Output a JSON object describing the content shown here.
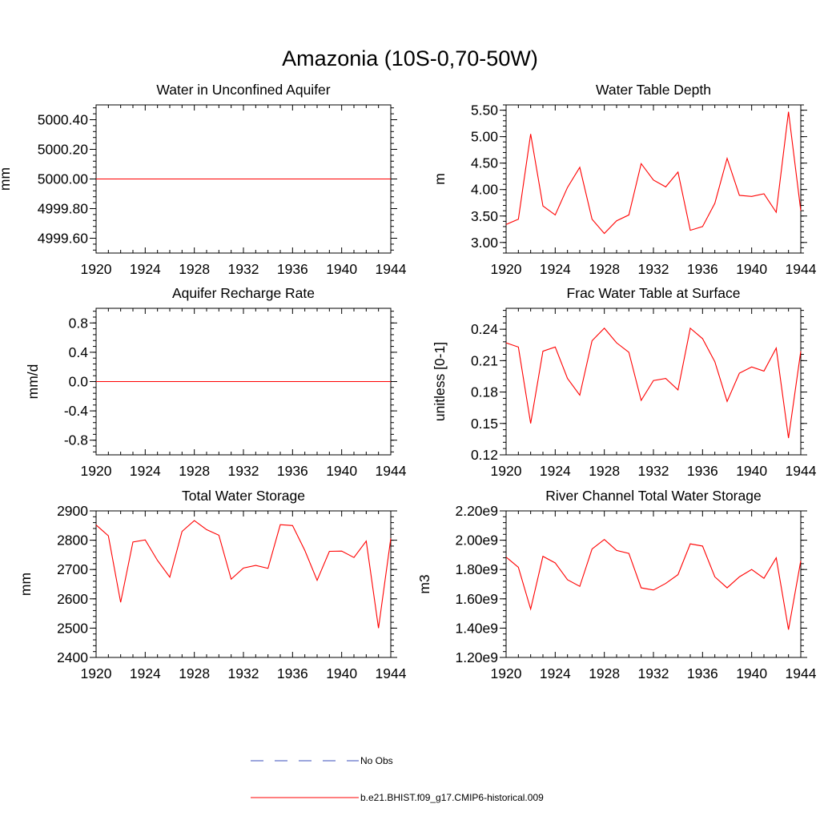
{
  "figure": {
    "title": "Amazonia (10S-0,70-50W)"
  },
  "colors": {
    "model_line": "#ff0000",
    "obs_line": "#3a4dbb",
    "axis": "#000000",
    "background": "#ffffff"
  },
  "legend": {
    "entries": [
      {
        "label": "No Obs",
        "style": "dashed",
        "color": "#3a4dbb"
      },
      {
        "label": "b.e21.BHIST.f09_g17.CMIP6-historical.009",
        "style": "solid",
        "color": "#ff0000"
      }
    ]
  },
  "chart_data": [
    {
      "type": "line",
      "title": "Water in Unconfined Aquifer",
      "ylabel": "mm",
      "xlabel": "",
      "xlim": [
        1920,
        1944
      ],
      "ylim": [
        4999.5,
        5000.5
      ],
      "xticks": [
        1920,
        1924,
        1928,
        1932,
        1936,
        1940,
        1944
      ],
      "xtick_labels": [
        "1920",
        "1924",
        "1928",
        "1932",
        "1936",
        "1940",
        "1944"
      ],
      "yticks": [
        4999.6,
        4999.8,
        5000.0,
        5000.2,
        5000.4
      ],
      "ytick_labels": [
        "4999.60",
        "4999.80",
        "5000.00",
        "5000.20",
        "5000.40"
      ],
      "x": [
        1920,
        1921,
        1922,
        1923,
        1924,
        1925,
        1926,
        1927,
        1928,
        1929,
        1930,
        1931,
        1932,
        1933,
        1934,
        1935,
        1936,
        1937,
        1938,
        1939,
        1940,
        1941,
        1942,
        1943,
        1944
      ],
      "series": [
        {
          "name": "b.e21.BHIST.f09_g17.CMIP6-historical.009",
          "values": [
            5000,
            5000,
            5000,
            5000,
            5000,
            5000,
            5000,
            5000,
            5000,
            5000,
            5000,
            5000,
            5000,
            5000,
            5000,
            5000,
            5000,
            5000,
            5000,
            5000,
            5000,
            5000,
            5000,
            5000,
            5000
          ]
        }
      ]
    },
    {
      "type": "line",
      "title": "Water Table Depth",
      "ylabel": "m",
      "xlabel": "",
      "xlim": [
        1920,
        1944
      ],
      "ylim": [
        2.8,
        5.6
      ],
      "xticks": [
        1920,
        1924,
        1928,
        1932,
        1936,
        1940,
        1944
      ],
      "xtick_labels": [
        "1920",
        "1924",
        "1928",
        "1932",
        "1936",
        "1940",
        "1944"
      ],
      "yticks": [
        3.0,
        3.5,
        4.0,
        4.5,
        5.0,
        5.5
      ],
      "ytick_labels": [
        "3.00",
        "3.50",
        "4.00",
        "4.50",
        "5.00",
        "5.50"
      ],
      "x": [
        1920,
        1921,
        1922,
        1923,
        1924,
        1925,
        1926,
        1927,
        1928,
        1929,
        1930,
        1931,
        1932,
        1933,
        1934,
        1935,
        1936,
        1937,
        1938,
        1939,
        1940,
        1941,
        1942,
        1943,
        1944
      ],
      "series": [
        {
          "name": "b.e21.BHIST.f09_g17.CMIP6-historical.009",
          "values": [
            3.34,
            3.44,
            5.05,
            3.69,
            3.52,
            4.04,
            4.42,
            3.44,
            3.17,
            3.41,
            3.52,
            4.49,
            4.18,
            4.05,
            4.33,
            3.23,
            3.3,
            3.74,
            4.59,
            3.89,
            3.87,
            3.92,
            3.57,
            5.47,
            3.6
          ]
        }
      ]
    },
    {
      "type": "line",
      "title": "Aquifer Recharge Rate",
      "ylabel": "mm/d",
      "xlabel": "",
      "xlim": [
        1920,
        1944
      ],
      "ylim": [
        -1.0,
        1.0
      ],
      "xticks": [
        1920,
        1924,
        1928,
        1932,
        1936,
        1940,
        1944
      ],
      "xtick_labels": [
        "1920",
        "1924",
        "1928",
        "1932",
        "1936",
        "1940",
        "1944"
      ],
      "yticks": [
        -0.8,
        -0.4,
        0.0,
        0.4,
        0.8
      ],
      "ytick_labels": [
        "-0.8",
        "-0.4",
        "0.0",
        "0.4",
        "0.8"
      ],
      "x": [
        1920,
        1921,
        1922,
        1923,
        1924,
        1925,
        1926,
        1927,
        1928,
        1929,
        1930,
        1931,
        1932,
        1933,
        1934,
        1935,
        1936,
        1937,
        1938,
        1939,
        1940,
        1941,
        1942,
        1943,
        1944
      ],
      "series": [
        {
          "name": "b.e21.BHIST.f09_g17.CMIP6-historical.009",
          "values": [
            0,
            0,
            0,
            0,
            0,
            0,
            0,
            0,
            0,
            0,
            0,
            0,
            0,
            0,
            0,
            0,
            0,
            0,
            0,
            0,
            0,
            0,
            0,
            0,
            0
          ]
        }
      ]
    },
    {
      "type": "line",
      "title": "Frac Water Table at Surface",
      "ylabel": "unitless [0-1]",
      "xlabel": "",
      "xlim": [
        1920,
        1944
      ],
      "ylim": [
        0.12,
        0.26
      ],
      "xticks": [
        1920,
        1924,
        1928,
        1932,
        1936,
        1940,
        1944
      ],
      "xtick_labels": [
        "1920",
        "1924",
        "1928",
        "1932",
        "1936",
        "1940",
        "1944"
      ],
      "yticks": [
        0.12,
        0.15,
        0.18,
        0.21,
        0.24
      ],
      "ytick_labels": [
        "0.12",
        "0.15",
        "0.18",
        "0.21",
        "0.24"
      ],
      "x": [
        1920,
        1921,
        1922,
        1923,
        1924,
        1925,
        1926,
        1927,
        1928,
        1929,
        1930,
        1931,
        1932,
        1933,
        1934,
        1935,
        1936,
        1937,
        1938,
        1939,
        1940,
        1941,
        1942,
        1943,
        1944
      ],
      "series": [
        {
          "name": "b.e21.BHIST.f09_g17.CMIP6-historical.009",
          "values": [
            0.227,
            0.223,
            0.15,
            0.219,
            0.223,
            0.193,
            0.177,
            0.229,
            0.241,
            0.227,
            0.218,
            0.172,
            0.191,
            0.193,
            0.182,
            0.241,
            0.231,
            0.209,
            0.171,
            0.198,
            0.204,
            0.2,
            0.222,
            0.136,
            0.219
          ]
        }
      ]
    },
    {
      "type": "line",
      "title": "Total Water Storage",
      "ylabel": "mm",
      "xlabel": "",
      "xlim": [
        1920,
        1944
      ],
      "ylim": [
        2400,
        2900
      ],
      "xticks": [
        1920,
        1924,
        1928,
        1932,
        1936,
        1940,
        1944
      ],
      "xtick_labels": [
        "1920",
        "1924",
        "1928",
        "1932",
        "1936",
        "1940",
        "1944"
      ],
      "yticks": [
        2400,
        2500,
        2600,
        2700,
        2800,
        2900
      ],
      "ytick_labels": [
        "2400",
        "2500",
        "2600",
        "2700",
        "2800",
        "2900"
      ],
      "x": [
        1920,
        1921,
        1922,
        1923,
        1924,
        1925,
        1926,
        1927,
        1928,
        1929,
        1930,
        1931,
        1932,
        1933,
        1934,
        1935,
        1936,
        1937,
        1938,
        1939,
        1940,
        1941,
        1942,
        1943,
        1944
      ],
      "series": [
        {
          "name": "b.e21.BHIST.f09_g17.CMIP6-historical.009",
          "values": [
            2852,
            2815,
            2588,
            2794,
            2801,
            2731,
            2674,
            2830,
            2867,
            2836,
            2817,
            2667,
            2705,
            2714,
            2704,
            2853,
            2850,
            2765,
            2663,
            2762,
            2763,
            2741,
            2797,
            2500,
            2806
          ]
        }
      ]
    },
    {
      "type": "line",
      "title": "River Channel Total Water Storage",
      "ylabel": "m3",
      "xlabel": "",
      "xlim": [
        1920,
        1944
      ],
      "ylim": [
        1200000000.0,
        2200000000.0
      ],
      "xticks": [
        1920,
        1924,
        1928,
        1932,
        1936,
        1940,
        1944
      ],
      "xtick_labels": [
        "1920",
        "1924",
        "1928",
        "1932",
        "1936",
        "1940",
        "1944"
      ],
      "yticks": [
        1200000000.0,
        1400000000.0,
        1600000000.0,
        1800000000.0,
        2000000000.0,
        2200000000.0
      ],
      "ytick_labels": [
        "1.20e9",
        "1.40e9",
        "1.60e9",
        "1.80e9",
        "2.00e9",
        "2.20e9"
      ],
      "x": [
        1920,
        1921,
        1922,
        1923,
        1924,
        1925,
        1926,
        1927,
        1928,
        1929,
        1930,
        1931,
        1932,
        1933,
        1934,
        1935,
        1936,
        1937,
        1938,
        1939,
        1940,
        1941,
        1942,
        1943,
        1944
      ],
      "series": [
        {
          "name": "b.e21.BHIST.f09_g17.CMIP6-historical.009",
          "values": [
            1885000000.0,
            1815000000.0,
            1530000000.0,
            1890000000.0,
            1845000000.0,
            1730000000.0,
            1685000000.0,
            1940000000.0,
            2005000000.0,
            1930000000.0,
            1910000000.0,
            1675000000.0,
            1660000000.0,
            1705000000.0,
            1765000000.0,
            1975000000.0,
            1960000000.0,
            1750000000.0,
            1675000000.0,
            1750000000.0,
            1800000000.0,
            1740000000.0,
            1880000000.0,
            1390000000.0,
            1860000000.0
          ]
        }
      ]
    }
  ]
}
